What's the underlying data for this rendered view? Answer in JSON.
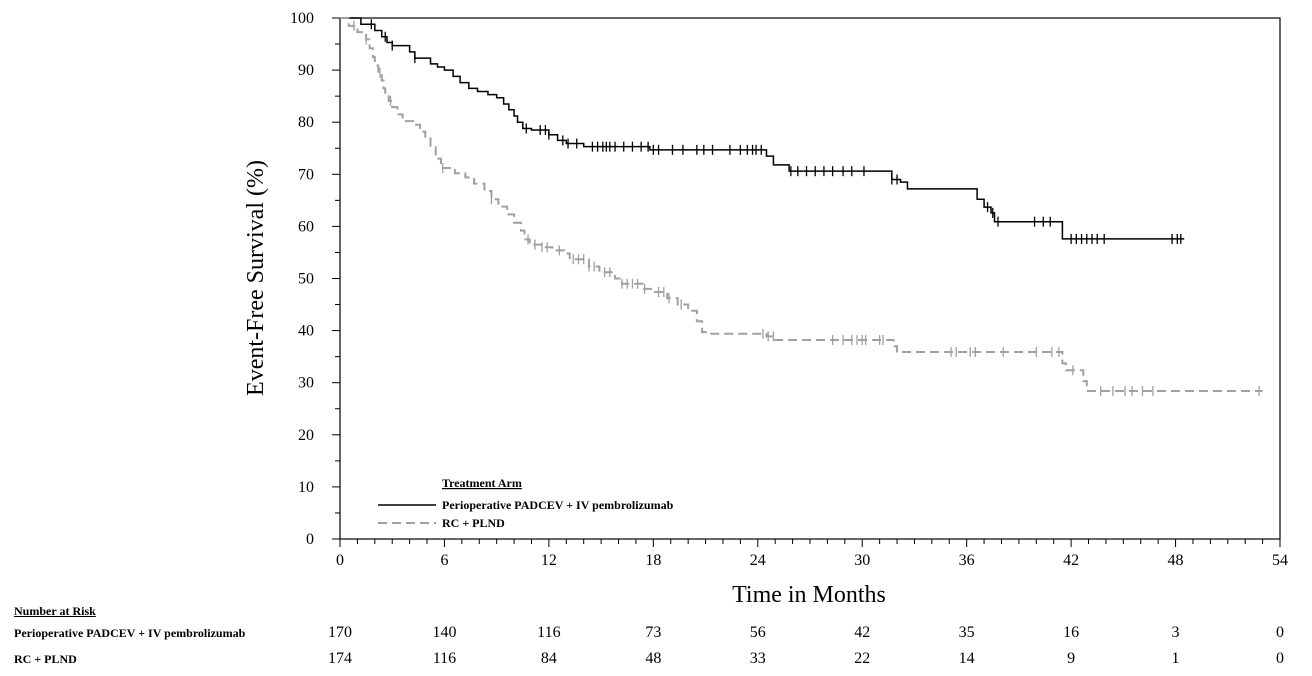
{
  "chart_data": {
    "type": "line",
    "xlabel": "Time in Months",
    "ylabel": "Event-Free Survival (%)",
    "xlim": [
      0,
      54
    ],
    "ylim": [
      0,
      100
    ],
    "x_ticks": [
      0,
      6,
      12,
      18,
      24,
      30,
      36,
      42,
      48,
      54
    ],
    "y_ticks": [
      0,
      10,
      20,
      30,
      40,
      50,
      60,
      70,
      80,
      90,
      100
    ],
    "legend": {
      "title": "Treatment  Arm",
      "position": "bottom-left",
      "entries": [
        "Perioperative  PADCEV  + IV  pembrolizumab",
        "RC + PLND"
      ]
    },
    "series": [
      {
        "name": "Perioperative  PADCEV  + IV  pembrolizumab",
        "color": "#000000",
        "style": "solid",
        "steps": [
          [
            0,
            100
          ],
          [
            1.2,
            98.8
          ],
          [
            2.0,
            97.6
          ],
          [
            2.4,
            96.4
          ],
          [
            2.7,
            95.3
          ],
          [
            3.0,
            94.7
          ],
          [
            4.0,
            93.5
          ],
          [
            4.3,
            92.3
          ],
          [
            5.2,
            91.2
          ],
          [
            5.6,
            90.6
          ],
          [
            6.0,
            90.0
          ],
          [
            6.5,
            88.8
          ],
          [
            6.9,
            87.6
          ],
          [
            7.4,
            86.5
          ],
          [
            7.9,
            85.9
          ],
          [
            8.5,
            85.3
          ],
          [
            9.0,
            84.7
          ],
          [
            9.4,
            83.5
          ],
          [
            9.7,
            82.4
          ],
          [
            10.0,
            81.2
          ],
          [
            10.2,
            80.0
          ],
          [
            10.5,
            78.8
          ],
          [
            11.0,
            78.5
          ],
          [
            12.0,
            77.6
          ],
          [
            12.5,
            76.5
          ],
          [
            13.0,
            75.9
          ],
          [
            14.0,
            75.3
          ],
          [
            17.8,
            74.7
          ],
          [
            24.5,
            73.5
          ],
          [
            24.9,
            71.8
          ],
          [
            25.8,
            70.6
          ],
          [
            30.0,
            70.6
          ],
          [
            31.7,
            69.0
          ],
          [
            32.2,
            68.5
          ],
          [
            32.6,
            67.2
          ],
          [
            36.2,
            67.2
          ],
          [
            36.6,
            65.2
          ],
          [
            37.0,
            63.7
          ],
          [
            37.4,
            62.6
          ],
          [
            37.6,
            60.9
          ],
          [
            41.3,
            60.9
          ],
          [
            41.5,
            57.6
          ],
          [
            48.5,
            57.6
          ]
        ],
        "censors": [
          1.8,
          2.6,
          3.0,
          4.3,
          10.7,
          11.5,
          11.8,
          12.0,
          12.8,
          13.1,
          13.6,
          14.5,
          14.8,
          15.1,
          15.3,
          15.5,
          15.8,
          16.3,
          16.8,
          17.3,
          17.7,
          18.0,
          18.3,
          19.1,
          19.7,
          20.5,
          20.9,
          21.4,
          22.4,
          23.0,
          23.4,
          23.7,
          23.9,
          24.2,
          25.9,
          26.3,
          26.8,
          27.3,
          27.8,
          28.3,
          28.9,
          29.4,
          30.1,
          31.7,
          32.0,
          37.2,
          37.5,
          37.8,
          39.9,
          40.4,
          40.8,
          42.0,
          42.3,
          42.6,
          42.9,
          43.2,
          43.5,
          43.9,
          47.8,
          48.1,
          48.3
        ]
      },
      {
        "name": "RC + PLND",
        "color": "#a0a0a0",
        "style": "dashed",
        "steps": [
          [
            0,
            100
          ],
          [
            0.5,
            98.5
          ],
          [
            1.0,
            97.3
          ],
          [
            1.5,
            95.9
          ],
          [
            1.7,
            94.2
          ],
          [
            1.9,
            92.5
          ],
          [
            2.0,
            90.9
          ],
          [
            2.2,
            89.5
          ],
          [
            2.4,
            88.0
          ],
          [
            2.5,
            86.5
          ],
          [
            2.6,
            85.3
          ],
          [
            2.8,
            84.1
          ],
          [
            3.0,
            82.9
          ],
          [
            3.3,
            81.5
          ],
          [
            3.6,
            80.2
          ],
          [
            4.2,
            79.5
          ],
          [
            4.6,
            78.2
          ],
          [
            4.9,
            76.9
          ],
          [
            5.2,
            75.4
          ],
          [
            5.5,
            73.0
          ],
          [
            5.8,
            71.2
          ],
          [
            6.6,
            70.2
          ],
          [
            7.2,
            69.4
          ],
          [
            7.7,
            68.2
          ],
          [
            8.3,
            66.8
          ],
          [
            8.7,
            65.2
          ],
          [
            9.1,
            63.8
          ],
          [
            9.6,
            62.3
          ],
          [
            10.0,
            60.7
          ],
          [
            10.4,
            59.2
          ],
          [
            10.6,
            57.5
          ],
          [
            10.9,
            56.5
          ],
          [
            11.6,
            56.0
          ],
          [
            12.2,
            55.4
          ],
          [
            12.9,
            54.8
          ],
          [
            13.2,
            53.7
          ],
          [
            14.3,
            52.3
          ],
          [
            14.9,
            51.2
          ],
          [
            15.8,
            50.0
          ],
          [
            16.2,
            49.0
          ],
          [
            17.4,
            48.0
          ],
          [
            18.0,
            47.4
          ],
          [
            18.8,
            46.2
          ],
          [
            19.4,
            45.0
          ],
          [
            20.0,
            43.8
          ],
          [
            20.5,
            41.8
          ],
          [
            20.8,
            39.7
          ],
          [
            21.2,
            39.4
          ],
          [
            24.5,
            38.9
          ],
          [
            25.0,
            38.2
          ],
          [
            31.5,
            38.2
          ],
          [
            31.8,
            37.0
          ],
          [
            32.0,
            35.9
          ],
          [
            41.2,
            35.9
          ],
          [
            41.5,
            33.7
          ],
          [
            41.7,
            32.4
          ],
          [
            42.7,
            30.3
          ],
          [
            42.9,
            28.4
          ],
          [
            53.0,
            28.4
          ]
        ],
        "censors": [
          0.8,
          1.5,
          2.3,
          2.9,
          5.9,
          8.7,
          10.8,
          11.2,
          11.6,
          11.9,
          12.6,
          13.4,
          13.7,
          14.0,
          14.3,
          14.6,
          15.2,
          15.5,
          16.2,
          16.5,
          16.8,
          17.1,
          17.5,
          18.3,
          18.6,
          18.9,
          19.6,
          24.3,
          24.6,
          24.9,
          28.3,
          28.9,
          29.4,
          29.7,
          30.0,
          30.2,
          31.0,
          31.2,
          35.1,
          35.4,
          36.2,
          36.5,
          38.1,
          40.0,
          40.9,
          41.3,
          42.1,
          43.7,
          44.4,
          45.1,
          45.5,
          46.1,
          46.7,
          52.8
        ]
      }
    ]
  },
  "risk_table": {
    "title": "Number  at Risk",
    "rows": [
      {
        "label": "Perioperative  PADCEV  + IV  pembrolizumab",
        "counts": [
          "170",
          "140",
          "116",
          "73",
          "56",
          "42",
          "35",
          "16",
          "3",
          "0"
        ]
      },
      {
        "label": "RC + PLND",
        "counts": [
          "174",
          "116",
          "84",
          "48",
          "33",
          "22",
          "14",
          "9",
          "1",
          "0"
        ]
      }
    ]
  }
}
